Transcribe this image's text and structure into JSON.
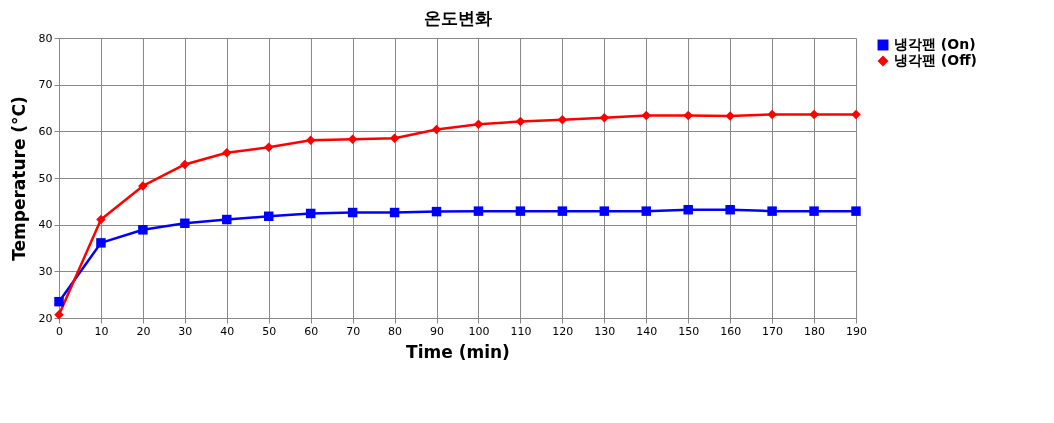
{
  "chart_data": {
    "type": "line",
    "title": "온도변화",
    "xlabel": "Time (min)",
    "ylabel": "Temperature (°C)",
    "x": [
      0,
      10,
      20,
      30,
      40,
      50,
      60,
      70,
      80,
      90,
      100,
      110,
      120,
      130,
      140,
      150,
      160,
      170,
      180,
      190
    ],
    "series": [
      {
        "name": "냉각팬 (On)",
        "color": "#0000ff",
        "marker": "square",
        "values": [
          23.5,
          36.1,
          38.9,
          40.3,
          41.1,
          41.8,
          42.4,
          42.6,
          42.6,
          42.8,
          42.9,
          42.9,
          42.9,
          42.9,
          42.9,
          43.2,
          43.2,
          42.9,
          42.9,
          42.9
        ]
      },
      {
        "name": "냉각팬 (Off)",
        "color": "#ff0000",
        "marker": "diamond",
        "values": [
          20.7,
          41.1,
          48.3,
          52.9,
          55.4,
          56.6,
          58.1,
          58.3,
          58.5,
          60.4,
          61.5,
          62.1,
          62.5,
          62.9,
          63.4,
          63.4,
          63.3,
          63.6,
          63.6,
          63.6
        ]
      }
    ],
    "xlim": [
      0,
      190
    ],
    "xticks": [
      0,
      10,
      20,
      30,
      40,
      50,
      60,
      70,
      80,
      90,
      100,
      110,
      120,
      130,
      140,
      150,
      160,
      170,
      180,
      190
    ],
    "ylim": [
      20,
      80
    ],
    "yticks": [
      20,
      30,
      40,
      50,
      60,
      70,
      80
    ],
    "grid": true,
    "legend": "right",
    "line_style": "solid"
  }
}
